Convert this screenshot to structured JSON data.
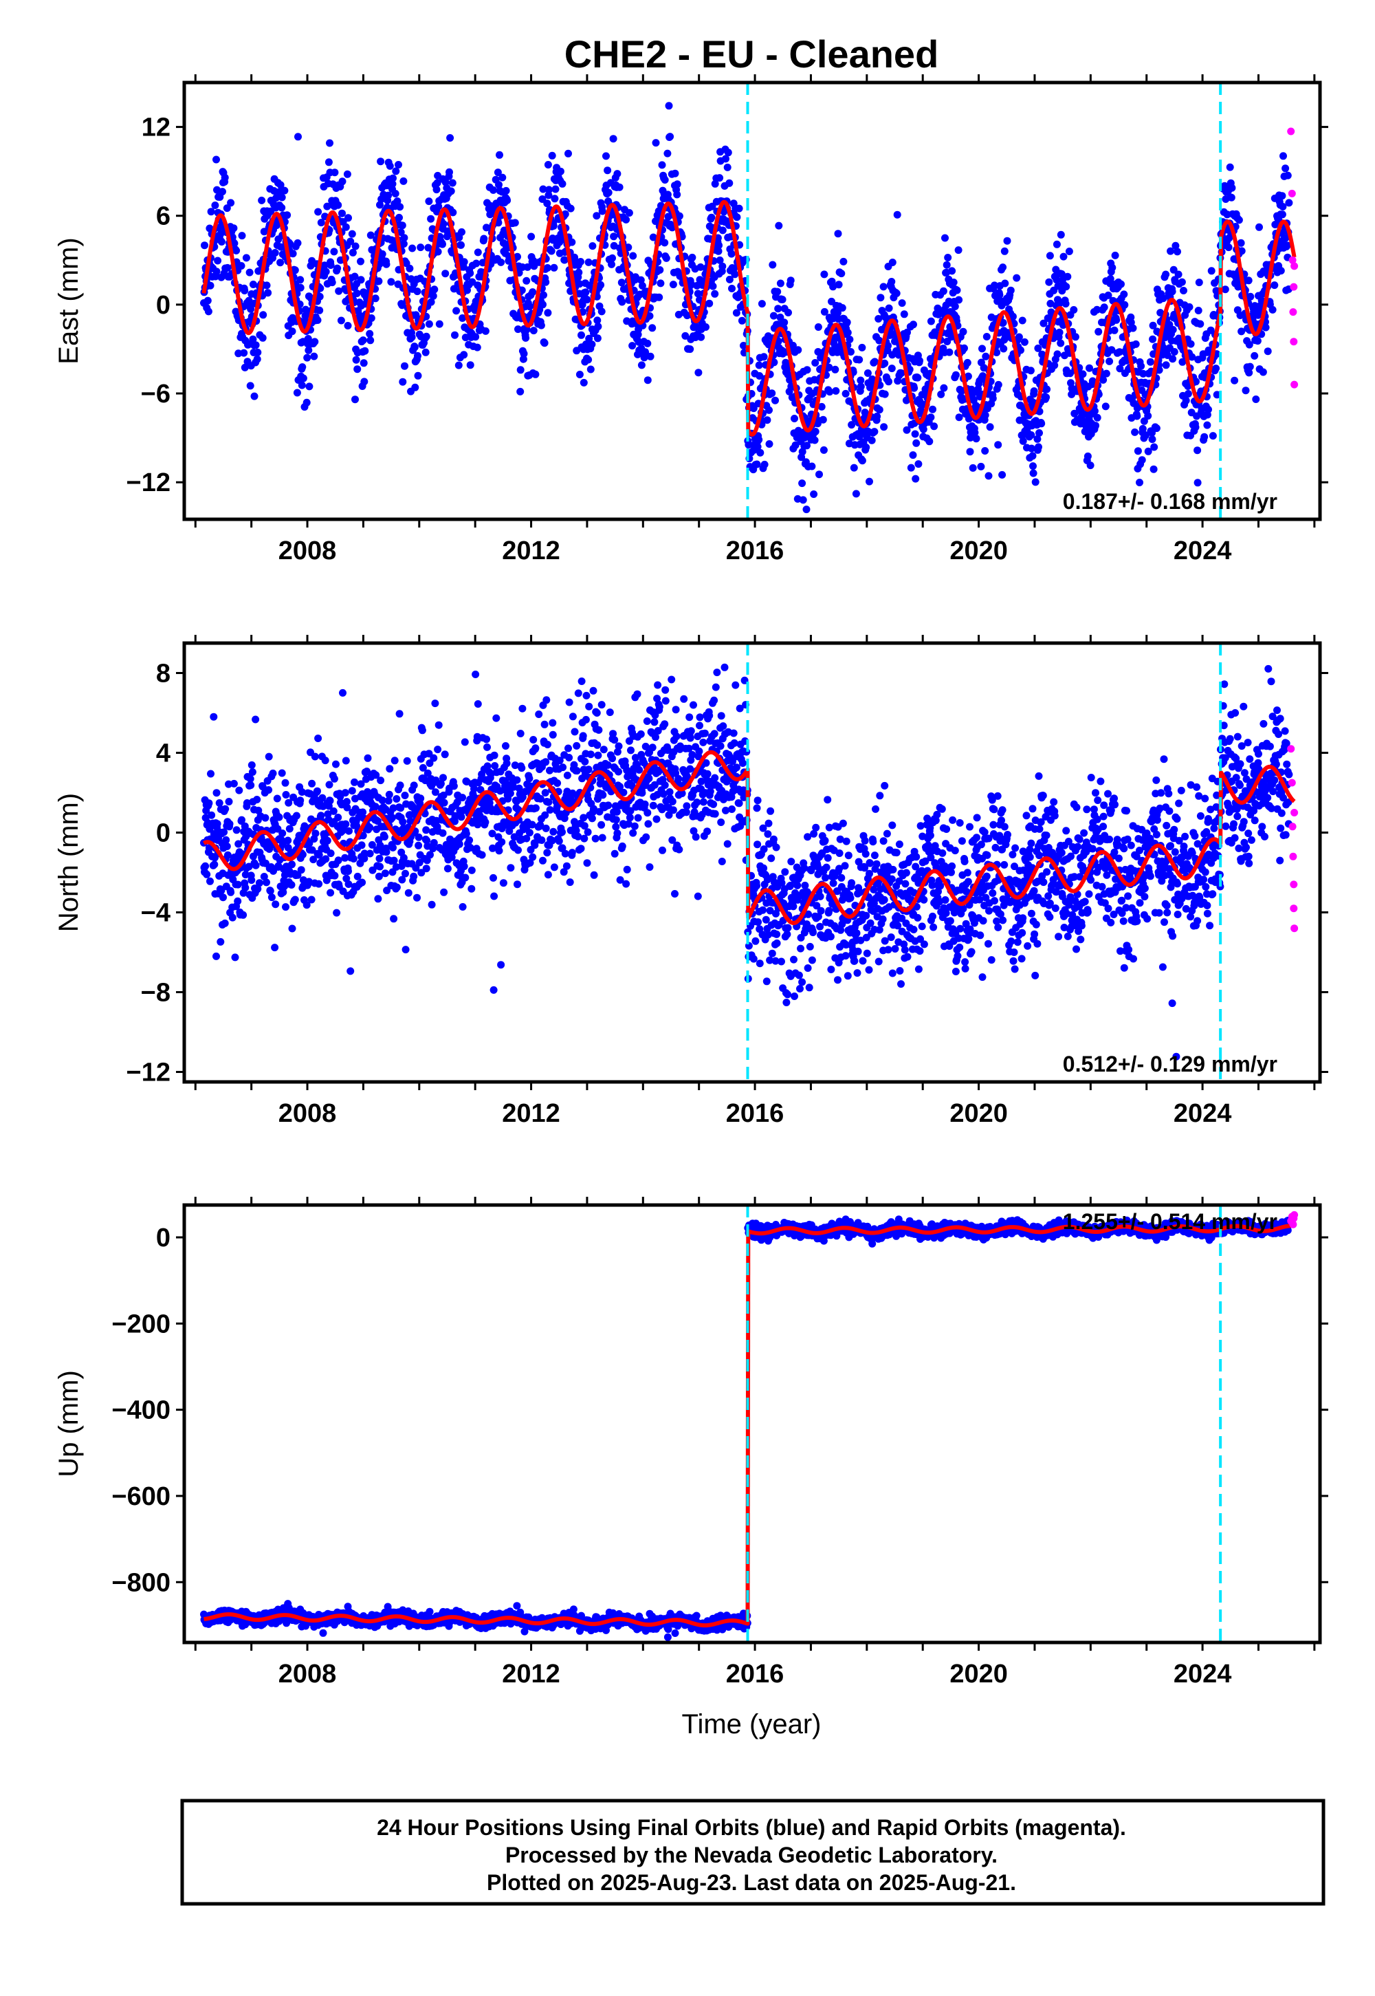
{
  "title": "CHE2  - EU - Cleaned",
  "xlabel": "Time (year)",
  "colors": {
    "final": "#0000ff",
    "rapid": "#ff00ff",
    "model": "#ff0000",
    "offset": "#00e5ff"
  },
  "chart_data": [
    {
      "type": "scatter",
      "ylabel": "East (mm)",
      "xlim": [
        2005.8,
        2026.1
      ],
      "ylim": [
        -14.5,
        15
      ],
      "xticks": [
        2008,
        2012,
        2016,
        2020,
        2024
      ],
      "yticks": [
        12,
        6,
        0,
        -6,
        -12
      ],
      "ytick_labels": [
        "12",
        "6",
        "0",
        "−6",
        "−12"
      ],
      "offsets": [
        2015.87,
        2024.32
      ],
      "rate_text": "0.187+/- 0.168 mm/yr",
      "model": {
        "segments": [
          {
            "start": 2006.15,
            "end": 2015.87,
            "base": 2.0,
            "trend": 0.1,
            "amp": 4.0,
            "phase": 0.0
          },
          {
            "start": 2015.87,
            "end": 2024.32,
            "base": -5.3,
            "trend": 0.28,
            "amp": 3.5,
            "phase": 0.0
          },
          {
            "start": 2024.32,
            "end": 2025.64,
            "base": 1.8,
            "trend": 0.0,
            "amp": 3.8,
            "phase": 0.0
          }
        ],
        "peak_year_fraction": 0.45
      },
      "series": [
        {
          "name": "Final Orbits (blue)",
          "x_range": [
            2006.15,
            2025.55
          ],
          "scatter": 2.1
        },
        {
          "name": "Rapid Orbits (magenta)",
          "x": [
            2025.58,
            2025.6,
            2025.61,
            2025.62,
            2025.63,
            2025.63,
            2025.64,
            2025.64
          ],
          "y": [
            11.7,
            7.5,
            3.0,
            -0.5,
            1.2,
            -2.5,
            -5.4,
            2.6
          ]
        }
      ]
    },
    {
      "type": "scatter",
      "ylabel": "North (mm)",
      "xlim": [
        2005.8,
        2026.1
      ],
      "ylim": [
        -12.5,
        9.5
      ],
      "xticks": [
        2008,
        2012,
        2016,
        2020,
        2024
      ],
      "yticks": [
        8,
        4,
        0,
        -4,
        -8,
        -12
      ],
      "ytick_labels": [
        "8",
        "4",
        "0",
        "−4",
        "−8",
        "−12"
      ],
      "offsets": [
        2015.87,
        2024.32
      ],
      "rate_text": "0.512+/- 0.129 mm/yr",
      "model": {
        "segments": [
          {
            "start": 2006.15,
            "end": 2015.87,
            "base": -1.3,
            "trend": 0.5,
            "amp": 0.8,
            "phase": 0.0
          },
          {
            "start": 2015.87,
            "end": 2024.32,
            "base": -3.9,
            "trend": 0.32,
            "amp": 0.9,
            "phase": 0.0
          },
          {
            "start": 2024.32,
            "end": 2025.64,
            "base": 2.4,
            "trend": 0.0,
            "amp": 0.9,
            "phase": 0.0
          }
        ],
        "peak_year_fraction": 0.2
      },
      "series": [
        {
          "name": "Final Orbits (blue)",
          "x_range": [
            2006.15,
            2025.55
          ],
          "scatter": 1.8
        },
        {
          "name": "Rapid Orbits (magenta)",
          "x": [
            2025.58,
            2025.6,
            2025.61,
            2025.62,
            2025.63,
            2025.63,
            2025.64,
            2025.64
          ],
          "y": [
            4.2,
            2.5,
            0.3,
            -1.2,
            -2.6,
            -3.8,
            -4.8,
            1.0
          ]
        }
      ]
    },
    {
      "type": "scatter",
      "ylabel": "Up (mm)",
      "xlim": [
        2005.8,
        2026.1
      ],
      "ylim": [
        -940,
        75
      ],
      "xticks": [
        2008,
        2012,
        2016,
        2020,
        2024
      ],
      "yticks": [
        0,
        -200,
        -400,
        -600,
        -800
      ],
      "ytick_labels": [
        "0",
        "−200",
        "−400",
        "−600",
        "−800"
      ],
      "offsets": [
        2015.87,
        2024.32
      ],
      "rate_text": "1.255+/- 0.514 mm/yr",
      "model": {
        "segments": [
          {
            "start": 2006.15,
            "end": 2015.87,
            "base": -880,
            "trend": -1.6,
            "amp": 6,
            "phase": 0.0
          },
          {
            "start": 2015.87,
            "end": 2025.64,
            "base": 15,
            "trend": 0.6,
            "amp": 6,
            "phase": 0.0
          }
        ],
        "peak_year_fraction": 0.6
      },
      "series": [
        {
          "name": "Final Orbits (blue)",
          "x_range": [
            2006.15,
            2025.55
          ],
          "scatter": 7
        },
        {
          "name": "Rapid Orbits (magenta)",
          "x": [
            2025.58,
            2025.6,
            2025.62,
            2025.63,
            2025.64
          ],
          "y": [
            38,
            48,
            30,
            44,
            52
          ]
        }
      ]
    }
  ],
  "footer": {
    "line1": "24 Hour Positions Using Final Orbits (blue) and Rapid Orbits (magenta).",
    "line2": "Processed by the Nevada Geodetic Laboratory.",
    "line3": "Plotted on 2025-Aug-23. Last data on 2025-Aug-21."
  }
}
